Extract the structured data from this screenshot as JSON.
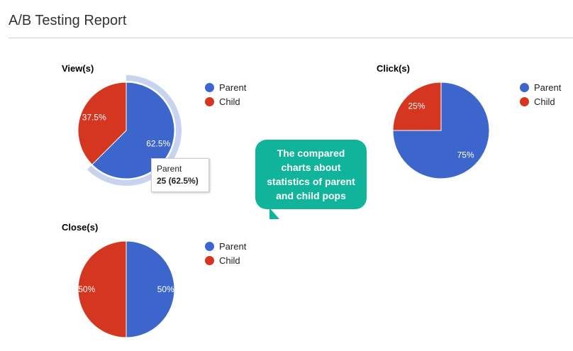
{
  "page": {
    "title": "A/B Testing Report"
  },
  "colors": {
    "parent": "#3d66cc",
    "child": "#d4361f",
    "highlight": "#c8d3ef",
    "bubble": "#0fb49a"
  },
  "chart_data": [
    {
      "type": "pie",
      "title": "View(s)",
      "labels": [
        "Parent",
        "Child"
      ],
      "values": [
        62.5,
        37.5
      ],
      "slice_labels": [
        "62.5%",
        "37.5%"
      ],
      "legend": "right",
      "highlighted": "Parent"
    },
    {
      "type": "pie",
      "title": "Click(s)",
      "labels": [
        "Parent",
        "Child"
      ],
      "values": [
        75,
        25
      ],
      "slice_labels": [
        "75%",
        "25%"
      ],
      "legend": "right"
    },
    {
      "type": "pie",
      "title": "Close(s)",
      "labels": [
        "Parent",
        "Child"
      ],
      "values": [
        50,
        50
      ],
      "slice_labels": [
        "50%",
        "50%"
      ],
      "legend": "right"
    }
  ],
  "tooltip": {
    "label": "Parent",
    "value": "25 (62.5%)"
  },
  "callout": {
    "text": "The compared charts about statistics of parent and child pops"
  }
}
